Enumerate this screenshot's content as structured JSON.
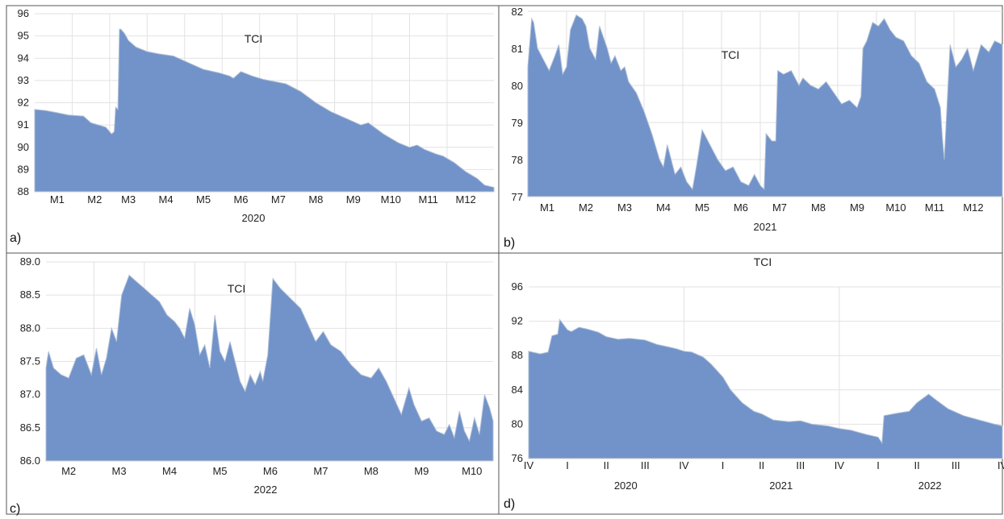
{
  "chart_data": [
    {
      "panel_label": "a)",
      "type": "area",
      "title": "TCI",
      "xlabel": "2020",
      "ylabel": "",
      "ylim": [
        88,
        96
      ],
      "yticks": [
        "88",
        "89",
        "90",
        "91",
        "92",
        "93",
        "94",
        "95",
        "96"
      ],
      "xticks": [
        "M1",
        "M2",
        "M3",
        "M4",
        "M5",
        "M6",
        "M7",
        "M8",
        "M9",
        "M10",
        "M11",
        "M12"
      ],
      "xrange": [
        0.5,
        12.75
      ],
      "series": [
        {
          "x": [
            0.5,
            0.8,
            1.1,
            1.4,
            1.8,
            2.0,
            2.2,
            2.4,
            2.55,
            2.62,
            2.66,
            2.72,
            2.76,
            2.8,
            2.9,
            3.0,
            3.2,
            3.5,
            3.8,
            4.2,
            4.6,
            5.0,
            5.4,
            5.7,
            5.8,
            6.0,
            6.3,
            6.6,
            6.9,
            7.2,
            7.6,
            8.0,
            8.4,
            8.8,
            9.2,
            9.4,
            9.8,
            10.2,
            10.5,
            10.7,
            10.9,
            11.2,
            11.4,
            11.7,
            12.0,
            12.3,
            12.5,
            12.75
          ],
          "y": [
            91.7,
            91.65,
            91.55,
            91.45,
            91.4,
            91.1,
            91.0,
            90.9,
            90.6,
            90.7,
            91.8,
            91.7,
            95.3,
            95.3,
            95.1,
            94.8,
            94.5,
            94.3,
            94.2,
            94.1,
            93.8,
            93.5,
            93.35,
            93.2,
            93.1,
            93.4,
            93.2,
            93.05,
            92.95,
            92.85,
            92.5,
            92.0,
            91.6,
            91.3,
            91.0,
            91.1,
            90.6,
            90.2,
            90.0,
            90.1,
            89.9,
            89.7,
            89.6,
            89.3,
            88.9,
            88.6,
            88.3,
            88.2
          ]
        }
      ]
    },
    {
      "panel_label": "b)",
      "type": "area",
      "title": "TCI",
      "xlabel": "2021",
      "ylabel": "",
      "ylim": [
        77,
        82
      ],
      "yticks": [
        "77",
        "78",
        "79",
        "80",
        "81",
        "82"
      ],
      "xticks": [
        "M1",
        "M2",
        "M3",
        "M4",
        "M5",
        "M6",
        "M7",
        "M8",
        "M9",
        "M10",
        "M11",
        "M12"
      ],
      "xrange": [
        0.5,
        12.75
      ],
      "series": [
        {
          "x": [
            0.5,
            0.6,
            0.65,
            0.75,
            0.9,
            1.05,
            1.2,
            1.3,
            1.4,
            1.5,
            1.6,
            1.75,
            1.9,
            2.0,
            2.1,
            2.25,
            2.35,
            2.45,
            2.55,
            2.65,
            2.75,
            2.9,
            3.0,
            3.1,
            3.3,
            3.5,
            3.7,
            3.9,
            4.0,
            4.1,
            4.2,
            4.3,
            4.45,
            4.6,
            4.75,
            4.85,
            5.0,
            5.2,
            5.4,
            5.6,
            5.8,
            6.0,
            6.2,
            6.35,
            6.5,
            6.6,
            6.65,
            6.8,
            6.9,
            6.95,
            7.1,
            7.3,
            7.5,
            7.6,
            7.8,
            8.0,
            8.2,
            8.4,
            8.6,
            8.8,
            9.0,
            9.1,
            9.15,
            9.25,
            9.4,
            9.55,
            9.7,
            9.85,
            10.0,
            10.2,
            10.4,
            10.6,
            10.8,
            11.0,
            11.15,
            11.2,
            11.25,
            11.4,
            11.55,
            11.7,
            11.85,
            12.0,
            12.2,
            12.4,
            12.55,
            12.75
          ],
          "y": [
            80.5,
            81.8,
            81.7,
            81.0,
            80.7,
            80.4,
            80.8,
            81.1,
            80.3,
            80.5,
            81.5,
            81.9,
            81.8,
            81.6,
            81.0,
            80.7,
            81.6,
            81.3,
            81.0,
            80.6,
            80.8,
            80.4,
            80.5,
            80.1,
            79.8,
            79.3,
            78.7,
            78.0,
            77.8,
            78.4,
            78.0,
            77.6,
            77.8,
            77.4,
            77.2,
            77.8,
            78.8,
            78.4,
            78.0,
            77.7,
            77.8,
            77.4,
            77.3,
            77.6,
            77.3,
            77.2,
            78.7,
            78.5,
            78.5,
            80.4,
            80.3,
            80.4,
            80.0,
            80.2,
            80.0,
            79.9,
            80.1,
            79.8,
            79.5,
            79.6,
            79.4,
            79.7,
            81.0,
            81.2,
            81.7,
            81.6,
            81.8,
            81.5,
            81.3,
            81.2,
            80.8,
            80.6,
            80.1,
            79.9,
            79.4,
            78.6,
            78.0,
            81.1,
            80.5,
            80.7,
            81.0,
            80.4,
            81.1,
            80.9,
            81.2,
            81.1
          ]
        }
      ]
    },
    {
      "panel_label": "c)",
      "type": "area",
      "title": "TCI",
      "xlabel": "2022",
      "ylabel": "",
      "ylim": [
        86.0,
        89.0
      ],
      "yticks": [
        "86.0",
        "86.5",
        "87.0",
        "87.5",
        "88.0",
        "88.5",
        "89.0"
      ],
      "xticks": [
        "M2",
        "M3",
        "M4",
        "M5",
        "M6",
        "M7",
        "M8",
        "M9",
        "M10"
      ],
      "xrange": [
        1.55,
        10.42
      ],
      "series": [
        {
          "x": [
            1.55,
            1.6,
            1.7,
            1.85,
            2.0,
            2.15,
            2.3,
            2.45,
            2.55,
            2.65,
            2.75,
            2.85,
            2.95,
            3.05,
            3.2,
            3.35,
            3.5,
            3.65,
            3.8,
            3.95,
            4.1,
            4.2,
            4.3,
            4.4,
            4.5,
            4.6,
            4.7,
            4.8,
            4.9,
            5.0,
            5.1,
            5.2,
            5.3,
            5.4,
            5.5,
            5.6,
            5.7,
            5.8,
            5.85,
            5.95,
            6.05,
            6.2,
            6.4,
            6.6,
            6.75,
            6.9,
            7.05,
            7.2,
            7.4,
            7.6,
            7.8,
            8.0,
            8.15,
            8.3,
            8.45,
            8.6,
            8.75,
            8.85,
            9.0,
            9.15,
            9.3,
            9.45,
            9.55,
            9.65,
            9.75,
            9.85,
            9.95,
            10.05,
            10.15,
            10.25,
            10.35,
            10.42
          ],
          "y": [
            87.4,
            87.65,
            87.4,
            87.3,
            87.25,
            87.55,
            87.6,
            87.3,
            87.7,
            87.3,
            87.55,
            88.0,
            87.8,
            88.5,
            88.8,
            88.7,
            88.6,
            88.5,
            88.4,
            88.2,
            88.1,
            88.0,
            87.85,
            88.3,
            88.05,
            87.6,
            87.75,
            87.4,
            88.2,
            87.65,
            87.5,
            87.8,
            87.5,
            87.2,
            87.05,
            87.3,
            87.15,
            87.35,
            87.2,
            87.6,
            88.75,
            88.6,
            88.45,
            88.3,
            88.05,
            87.8,
            87.95,
            87.75,
            87.65,
            87.45,
            87.3,
            87.25,
            87.4,
            87.2,
            86.95,
            86.7,
            87.1,
            86.85,
            86.6,
            86.65,
            86.45,
            86.4,
            86.55,
            86.35,
            86.75,
            86.45,
            86.3,
            86.65,
            86.4,
            87.0,
            86.8,
            86.6
          ]
        }
      ]
    },
    {
      "panel_label": "d)",
      "type": "area",
      "title": "TCI",
      "xlabel": "",
      "ylabel": "",
      "ylim": [
        76,
        96
      ],
      "yticks": [
        "76",
        "80",
        "84",
        "88",
        "92",
        "96"
      ],
      "xticks": [
        "IV",
        "I",
        "II",
        "III",
        "IV",
        "I",
        "II",
        "III",
        "IV",
        "I",
        "II",
        "III",
        "IV"
      ],
      "year_labels": [
        "2020",
        "2021",
        "2022"
      ],
      "xrange": [
        0,
        12.2
      ],
      "series": [
        {
          "x": [
            0.0,
            0.3,
            0.5,
            0.6,
            0.75,
            0.8,
            1.0,
            1.1,
            1.3,
            1.5,
            1.8,
            2.0,
            2.3,
            2.6,
            3.0,
            3.3,
            3.6,
            3.8,
            4.0,
            4.2,
            4.5,
            4.7,
            5.0,
            5.2,
            5.5,
            5.8,
            6.0,
            6.3,
            6.7,
            7.0,
            7.3,
            7.7,
            8.0,
            8.3,
            8.7,
            9.0,
            9.1,
            9.15,
            9.5,
            9.8,
            10.0,
            10.3,
            10.5,
            10.8,
            11.2,
            11.6,
            12.0,
            12.2
          ],
          "y": [
            88.5,
            88.2,
            88.4,
            90.3,
            90.5,
            92.2,
            91.0,
            90.8,
            91.3,
            91.1,
            90.7,
            90.2,
            89.9,
            90.0,
            89.8,
            89.3,
            89.0,
            88.8,
            88.5,
            88.4,
            87.8,
            87.0,
            85.5,
            84.0,
            82.5,
            81.5,
            81.2,
            80.5,
            80.3,
            80.4,
            80.0,
            79.8,
            79.5,
            79.3,
            78.8,
            78.5,
            77.8,
            81.0,
            81.3,
            81.5,
            82.5,
            83.5,
            82.8,
            81.8,
            81.0,
            80.5,
            80.0,
            79.8
          ]
        }
      ]
    }
  ],
  "style": {
    "fill": "#7193c9",
    "stroke": "#b0bfd6",
    "grid": "#e2e2e2",
    "axis": "#cfcfcf"
  }
}
